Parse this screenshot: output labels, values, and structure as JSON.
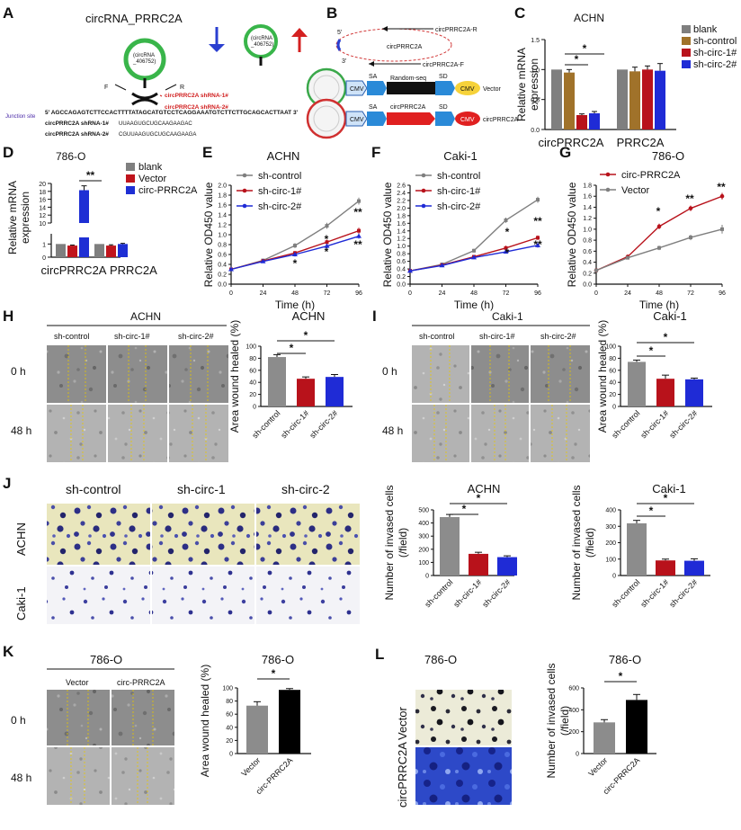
{
  "figure": {
    "panel_letters": [
      "A",
      "B",
      "C",
      "D",
      "E",
      "F",
      "G",
      "H",
      "I",
      "J",
      "K",
      "L"
    ],
    "colors": {
      "blank": "#7f7f7f",
      "sh_control": "#a0722a",
      "sh_circ1": "#b8121b",
      "sh_circ2": "#1f2bd6",
      "vector": "#c0141c",
      "circ_prrc2a": "#1e2fd4",
      "gray_bar": "#8c8c8c",
      "red_bar": "#b8121b",
      "blue_bar": "#1f2bd6",
      "black_bar": "#000000",
      "arrow_down": "#2a3fd0",
      "arrow_up": "#d42020",
      "ring_green": "#39b54a"
    },
    "sig_labels": {
      "one": "*",
      "two": "**"
    }
  },
  "panelA": {
    "title": "circRNA_PRRC2A",
    "circ_label": "(circRNA\n_406752)",
    "circ_label_l1": "(circRNA",
    "circ_label_l2": "_406752)",
    "strand_f": "F",
    "strand_r": "R",
    "shrna1": "circPRRC2A shRNA-1#",
    "shrna2": "circPRRC2A shRNA-2#",
    "junction_label": "Junction site",
    "junction_seq": "5' AGCCAGAGTCTTCCACTTTTATAGCATGTCCTCAGGAAATGTCTTCTTGCAGCACTTAAT 3'",
    "sh1_name": "circPRRC2A shRNA-1#",
    "sh1_seq": "UUAAGUGCUGCAAGAAGAC",
    "sh2_name": "circPRRC2A shRNA-2#",
    "sh2_seq": "CGUUAAGUGCUGCAAGAAGA",
    "right_circ_l1": "(circRNA",
    "right_circ_l2": "_406752)"
  },
  "panelB": {
    "primer_r": "circPRRC2A-R",
    "primer_f": "circPRRC2A-F",
    "circ_name": "circPRRC2A",
    "five_prime": "5'",
    "three_prime": "3'",
    "cmv": "CMV",
    "sa": "SA",
    "sd": "SD",
    "random_seq": "Random-seq",
    "vector_label": "Vector",
    "insert_label": "circPRRC2A",
    "construct_label": "circPRRC2A"
  },
  "chart_data": [
    {
      "id": "C",
      "type": "bar",
      "title": "ACHN",
      "ylabel": "Relative mRNA expression",
      "ylim": [
        0,
        1.5
      ],
      "yticks": [
        "0.0",
        "0.5",
        "1.0",
        "1.5"
      ],
      "categories": [
        "circPRRC2A",
        "PRRC2A"
      ],
      "legend": [
        "blank",
        "sh-control",
        "sh-circ-1#",
        "sh-circ-2#"
      ],
      "series": [
        {
          "name": "blank",
          "values": [
            1.0,
            1.0
          ],
          "errors": [
            0.0,
            0.0
          ]
        },
        {
          "name": "sh-control",
          "values": [
            0.95,
            0.97
          ],
          "errors": [
            0.05,
            0.07
          ]
        },
        {
          "name": "sh-circ-1#",
          "values": [
            0.24,
            1.0
          ],
          "errors": [
            0.02,
            0.06
          ]
        },
        {
          "name": "sh-circ-2#",
          "values": [
            0.27,
            0.98
          ],
          "errors": [
            0.03,
            0.12
          ]
        }
      ],
      "significance": [
        "*",
        "*"
      ]
    },
    {
      "id": "D",
      "type": "bar",
      "title": "786-O",
      "ylabel": "Relative mRNA expression",
      "ylim_segments": [
        [
          0,
          1.5
        ],
        [
          10,
          20
        ]
      ],
      "yticks": [
        "0",
        "1",
        "10",
        "12",
        "14",
        "16",
        "18",
        "20"
      ],
      "categories": [
        "circPRRC2A",
        "PRRC2A"
      ],
      "legend": [
        "blank",
        "Vector",
        "circ-PRRC2A"
      ],
      "series": [
        {
          "name": "blank",
          "values": [
            1.0,
            1.0
          ],
          "errors": [
            0.0,
            0.0
          ]
        },
        {
          "name": "Vector",
          "values": [
            0.88,
            0.88
          ],
          "errors": [
            0.04,
            0.06
          ]
        },
        {
          "name": "circ-PRRC2A",
          "values": [
            18.3,
            1.0
          ],
          "errors": [
            1.1,
            0.05
          ]
        }
      ],
      "significance": [
        "**"
      ]
    },
    {
      "id": "E",
      "type": "line",
      "title": "ACHN",
      "xlabel": "Time (h)",
      "ylabel": "Relative OD450 value",
      "x": [
        0,
        24,
        48,
        72,
        96
      ],
      "xlim": [
        0,
        96
      ],
      "ylim": [
        0,
        2.0
      ],
      "xticks": [
        "0",
        "24",
        "48",
        "72",
        "96"
      ],
      "yticks": [
        "0.0",
        "0.2",
        "0.4",
        "0.6",
        "0.8",
        "1.0",
        "1.2",
        "1.4",
        "1.6",
        "1.8",
        "2.0"
      ],
      "series": [
        {
          "name": "sh-control",
          "values": [
            0.3,
            0.48,
            0.78,
            1.18,
            1.68
          ],
          "errors": [
            0.02,
            0.03,
            0.05,
            0.06,
            0.07
          ]
        },
        {
          "name": "sh-circ-1#",
          "values": [
            0.3,
            0.47,
            0.63,
            0.85,
            1.08
          ],
          "errors": [
            0.02,
            0.03,
            0.04,
            0.05,
            0.06
          ]
        },
        {
          "name": "sh-circ-2#",
          "values": [
            0.3,
            0.46,
            0.6,
            0.77,
            0.97
          ],
          "errors": [
            0.02,
            0.03,
            0.04,
            0.05,
            0.05
          ]
        }
      ],
      "significance_48": [
        "*"
      ],
      "significance_72": [
        "*",
        "*"
      ],
      "significance_96": [
        "**",
        "**"
      ]
    },
    {
      "id": "F",
      "type": "line",
      "title": "Caki-1",
      "xlabel": "Time (h)",
      "ylabel": "Relative OD450 value",
      "x": [
        0,
        24,
        48,
        72,
        96
      ],
      "xlim": [
        0,
        96
      ],
      "ylim": [
        0,
        2.6
      ],
      "xticks": [
        "0",
        "24",
        "48",
        "72",
        "96"
      ],
      "yticks": [
        "0.0",
        "0.2",
        "0.4",
        "0.6",
        "0.8",
        "1.0",
        "1.2",
        "1.4",
        "1.6",
        "1.8",
        "2.0",
        "2.2",
        "2.4",
        "2.6"
      ],
      "series": [
        {
          "name": "sh-control",
          "values": [
            0.35,
            0.52,
            0.88,
            1.68,
            2.22
          ],
          "errors": [
            0.02,
            0.03,
            0.05,
            0.07,
            0.08
          ]
        },
        {
          "name": "sh-circ-1#",
          "values": [
            0.35,
            0.5,
            0.72,
            0.95,
            1.22
          ],
          "errors": [
            0.02,
            0.03,
            0.04,
            0.06,
            0.06
          ]
        },
        {
          "name": "sh-circ-2#",
          "values": [
            0.35,
            0.49,
            0.7,
            0.85,
            1.02
          ],
          "errors": [
            0.02,
            0.03,
            0.04,
            0.05,
            0.06
          ]
        }
      ],
      "significance_72": [
        "*",
        "*"
      ],
      "significance_96": [
        "**",
        "**"
      ]
    },
    {
      "id": "G",
      "type": "line",
      "title": "786-O",
      "xlabel": "Time (h)",
      "ylabel": "Relative OD450 value",
      "x": [
        0,
        24,
        48,
        72,
        96
      ],
      "xlim": [
        0,
        96
      ],
      "ylim": [
        0,
        1.8
      ],
      "xticks": [
        "0",
        "24",
        "48",
        "72",
        "96"
      ],
      "yticks": [
        "0.0",
        "0.2",
        "0.4",
        "0.6",
        "0.8",
        "1.0",
        "1.2",
        "1.4",
        "1.6",
        "1.8"
      ],
      "series": [
        {
          "name": "circ-PRRC2A",
          "values": [
            0.25,
            0.5,
            1.05,
            1.38,
            1.6
          ],
          "errors": [
            0.02,
            0.03,
            0.05,
            0.05,
            0.06
          ]
        },
        {
          "name": "Vector",
          "values": [
            0.25,
            0.48,
            0.66,
            0.85,
            1.0
          ],
          "errors": [
            0.02,
            0.03,
            0.04,
            0.05,
            0.08
          ]
        }
      ],
      "significance": [
        "*",
        "**",
        "**"
      ]
    },
    {
      "id": "H",
      "type": "bar",
      "title": "ACHN",
      "ylabel": "Area wound healed (%)",
      "ylim": [
        0,
        100
      ],
      "yticks": [
        "0",
        "20",
        "40",
        "60",
        "80",
        "100"
      ],
      "categories": [
        "sh-control",
        "sh-circ-1#",
        "sh-circ-2#"
      ],
      "values": [
        82,
        46,
        49
      ],
      "errors": [
        4,
        3,
        4
      ],
      "significance": [
        "*",
        "*"
      ]
    },
    {
      "id": "I",
      "type": "bar",
      "title": "Caki-1",
      "ylabel": "Area wound healed (%)",
      "ylim": [
        0,
        100
      ],
      "yticks": [
        "0",
        "20",
        "40",
        "60",
        "80",
        "100"
      ],
      "categories": [
        "sh-control",
        "sh-circ-1#",
        "sh-circ-2#"
      ],
      "values": [
        74,
        46,
        45
      ],
      "errors": [
        3,
        6,
        2
      ],
      "significance": [
        "*",
        "*"
      ]
    },
    {
      "id": "J1",
      "type": "bar",
      "title": "ACHN",
      "ylabel": "Number of invased cells (/field)",
      "ylim": [
        0,
        500
      ],
      "yticks": [
        "0",
        "100",
        "200",
        "300",
        "400",
        "500"
      ],
      "categories": [
        "sh-control",
        "sh-circ-1#",
        "sh-circ-2#"
      ],
      "values": [
        445,
        165,
        140
      ],
      "errors": [
        20,
        12,
        10
      ],
      "significance": [
        "*",
        "*"
      ]
    },
    {
      "id": "J2",
      "type": "bar",
      "title": "Caki-1",
      "ylabel": "Number of invased cells (/field)",
      "ylim": [
        0,
        400
      ],
      "yticks": [
        "0",
        "100",
        "200",
        "300",
        "400"
      ],
      "categories": [
        "sh-control",
        "sh-circ-1#",
        "sh-circ-2#"
      ],
      "values": [
        318,
        92,
        90
      ],
      "errors": [
        18,
        8,
        12
      ],
      "significance": [
        "*",
        "*"
      ]
    },
    {
      "id": "K",
      "type": "bar",
      "title": "786-O",
      "ylabel": "Area wound healed (%)",
      "ylim": [
        0,
        100
      ],
      "yticks": [
        "0",
        "20",
        "40",
        "60",
        "80",
        "100"
      ],
      "categories": [
        "Vector",
        "circ-PRRC2A"
      ],
      "values": [
        73,
        97
      ],
      "errors": [
        6,
        2
      ],
      "significance": [
        "*"
      ]
    },
    {
      "id": "L",
      "type": "bar",
      "title": "786-O",
      "ylabel": "Number of invased cells (/field)",
      "ylim": [
        0,
        600
      ],
      "yticks": [
        "0",
        "200",
        "400",
        "600"
      ],
      "categories": [
        "Vector",
        "circ-PRRC2A"
      ],
      "values": [
        285,
        490
      ],
      "errors": [
        25,
        50
      ],
      "significance": [
        "*"
      ]
    }
  ],
  "microscopy": {
    "H_title": "ACHN",
    "H_cols": [
      "sh-control",
      "sh-circ-1#",
      "sh-circ-2#"
    ],
    "H_rows": [
      "0 h",
      "48 h"
    ],
    "I_title": "Caki-1",
    "I_cols": [
      "sh-control",
      "sh-circ-1#",
      "sh-circ-2#"
    ],
    "I_rows": [
      "0 h",
      "48 h"
    ],
    "J_cols": [
      "sh-control",
      "sh-circ-1",
      "sh-circ-2"
    ],
    "J_rows": [
      "ACHN",
      "Caki-1"
    ],
    "K_title": "786-O",
    "K_cols": [
      "Vector",
      "circ-PRRC2A"
    ],
    "K_rows": [
      "0 h",
      "48 h"
    ],
    "L_title": "786-O",
    "L_rows": [
      "Vector",
      "circPRRC2A"
    ]
  }
}
